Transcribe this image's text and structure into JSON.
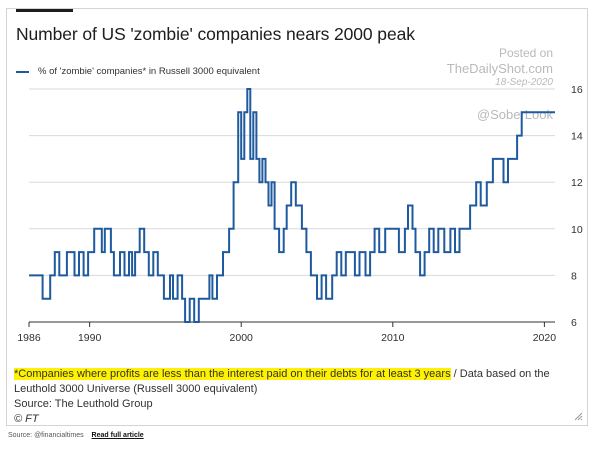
{
  "title": "Number of US 'zombie' companies nears 2000 peak",
  "legend_label": "% of 'zombie' companies* in Russell 3000 equivalent",
  "watermark": {
    "line1": "Posted on",
    "line2": "TheDailyShot.com",
    "line3": "18-Sep-2020",
    "line4": "@SoberLook"
  },
  "footnote": {
    "highlighted": "*Companies where profits are less than the interest paid on their debts for at least 3 years",
    "rest": " / Data based on the Leuthold 3000 Universe (Russell 3000 equivalent)",
    "source": "Source: The Leuthold Group",
    "credit": "© FT"
  },
  "page_footer": {
    "source": "Source: @financialtimes",
    "link": "Read full article"
  },
  "colors": {
    "line": "#1f5a9e",
    "grid": "#d9d9d9",
    "axis": "#33302e",
    "highlight": "#fff200"
  },
  "chart_data": {
    "type": "line",
    "title": "Number of US 'zombie' companies nears 2000 peak",
    "xlabel": "",
    "ylabel": "",
    "xlim": [
      1986,
      2020.7
    ],
    "ylim": [
      6,
      16
    ],
    "x_ticks": [
      1986,
      1990,
      2000,
      2010,
      2020
    ],
    "y_ticks": [
      6,
      8,
      10,
      12,
      14,
      16
    ],
    "y_axis_side": "right",
    "grid": "horizontal",
    "legend_position": "top-left",
    "series": [
      {
        "name": "% of 'zombie' companies* in Russell 3000 equivalent",
        "style": "step",
        "x": [
          1986.0,
          1986.9,
          1987.4,
          1987.7,
          1988.0,
          1988.5,
          1989.0,
          1989.3,
          1989.6,
          1989.9,
          1990.3,
          1990.8,
          1991.0,
          1991.4,
          1991.6,
          1992.0,
          1992.3,
          1992.6,
          1992.8,
          1993.0,
          1993.3,
          1993.6,
          1993.9,
          1994.2,
          1994.5,
          1994.9,
          1995.3,
          1995.5,
          1995.8,
          1996.1,
          1996.3,
          1996.6,
          1996.9,
          1997.2,
          1997.6,
          1997.9,
          1998.1,
          1998.4,
          1998.8,
          1999.2,
          1999.5,
          1999.8,
          2000.0,
          2000.2,
          2000.4,
          2000.6,
          2000.8,
          2001.0,
          2001.2,
          2001.4,
          2001.6,
          2001.8,
          2002.0,
          2002.2,
          2002.5,
          2002.8,
          2003.0,
          2003.3,
          2003.6,
          2004.0,
          2004.3,
          2004.6,
          2005.0,
          2005.3,
          2005.6,
          2006.0,
          2006.3,
          2006.6,
          2006.9,
          2007.2,
          2007.5,
          2007.8,
          2008.2,
          2008.5,
          2008.8,
          2009.1,
          2009.5,
          2010.0,
          2010.4,
          2010.8,
          2011.0,
          2011.3,
          2011.5,
          2011.8,
          2012.1,
          2012.4,
          2012.7,
          2013.0,
          2013.4,
          2013.8,
          2014.1,
          2014.4,
          2014.7,
          2015.1,
          2015.5,
          2015.8,
          2016.2,
          2016.6,
          2017.0,
          2017.3,
          2017.6,
          2017.9,
          2018.2,
          2018.5,
          2018.8,
          2019.0,
          2019.4,
          2019.8,
          2020.1,
          2020.4,
          2020.6,
          2020.7
        ],
        "values": [
          8,
          7,
          8,
          9,
          8,
          9,
          8,
          9,
          8,
          9,
          10,
          9,
          10,
          9,
          8,
          9,
          8,
          9,
          8,
          9,
          10,
          9,
          8,
          9,
          8,
          7,
          8,
          7,
          8,
          7,
          6,
          7,
          6,
          7,
          7,
          8,
          7,
          8,
          9,
          10,
          12,
          15,
          13,
          15,
          16,
          13,
          15,
          13,
          12,
          13,
          12,
          11,
          12,
          10,
          9,
          10,
          11,
          12,
          11,
          10,
          9,
          8,
          7,
          8,
          7,
          8,
          9,
          8,
          9,
          9,
          8,
          9,
          8,
          9,
          10,
          9,
          10,
          10,
          9,
          10,
          11,
          10,
          9,
          8,
          9,
          10,
          9,
          10,
          9,
          10,
          9,
          10,
          10,
          11,
          12,
          11,
          12,
          13,
          13,
          12,
          13,
          13,
          14,
          15,
          15,
          15,
          15,
          15,
          15,
          15,
          15,
          15
        ]
      }
    ],
    "annotations": [
      "Posted on",
      "TheDailyShot.com",
      "18-Sep-2020",
      "@SoberLook"
    ]
  }
}
